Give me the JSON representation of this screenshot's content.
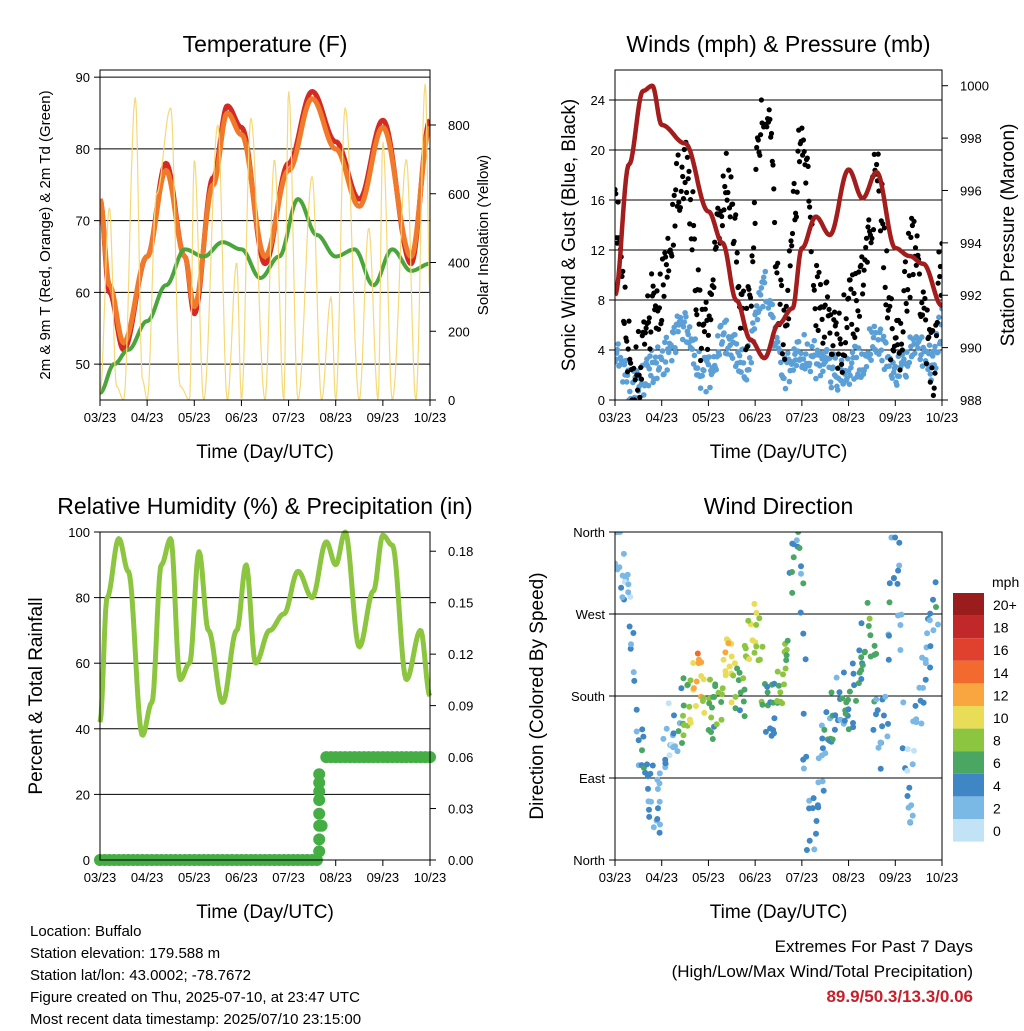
{
  "footer": {
    "location": "Location: Buffalo",
    "elevation": "Station elevation: 179.588 m",
    "latlon": "Station lat/lon: 43.0002; -78.7672",
    "created": "Figure created on Thu, 2025-07-10, at 23:47 UTC",
    "recent": "Most recent data timestamp: 2025/07/10 23:15:00"
  },
  "extremes": {
    "title": "Extremes For Past 7 Days",
    "subtitle": "(High/Low/Max Wind/Total Precipitation)",
    "values": "89.9/50.3/13.3/0.06",
    "color": "#c8202a"
  },
  "chart_data": [
    {
      "type": "line",
      "title": "Temperature (F)",
      "xlabel": "Time (Day/UTC)",
      "ylabel": "2m & 9m T (Red, Orange) & 2m Td (Green)",
      "y2label": "Solar Insolation (Yellow)",
      "x_ticks": [
        "03/23",
        "04/23",
        "05/23",
        "06/23",
        "07/23",
        "08/23",
        "09/23",
        "10/23"
      ],
      "ylim": [
        45,
        91
      ],
      "y_ticks": [
        50,
        60,
        70,
        80,
        90
      ],
      "y2lim": [
        0,
        960
      ],
      "y2_ticks": [
        0,
        200,
        400,
        600,
        800
      ],
      "grid": true,
      "series": [
        {
          "name": "2m T",
          "color": "#d42a24",
          "axis": "y",
          "x": [
            0,
            0.2,
            0.5,
            1,
            1.4,
            1.8,
            2,
            2.4,
            2.7,
            3,
            3.5,
            4,
            4.5,
            5,
            5.5,
            6,
            6.6,
            7
          ],
          "values": [
            73,
            60,
            52,
            65,
            78,
            65,
            57,
            76,
            86,
            83,
            64,
            78,
            88,
            81,
            73,
            84,
            64,
            84
          ]
        },
        {
          "name": "9m T",
          "color": "#f07a2a",
          "axis": "y",
          "x": [
            0,
            0.2,
            0.5,
            1,
            1.4,
            1.8,
            2,
            2.4,
            2.7,
            3,
            3.5,
            4,
            4.5,
            5,
            5.5,
            6,
            6.6,
            7
          ],
          "values": [
            73,
            61,
            53,
            65,
            77,
            65,
            58,
            75,
            85,
            82,
            65,
            77,
            87,
            80,
            72,
            83,
            65,
            83
          ]
        },
        {
          "name": "2m Td",
          "color": "#4aa63c",
          "axis": "y",
          "x": [
            0,
            0.3,
            0.6,
            1,
            1.4,
            1.8,
            2.2,
            2.6,
            3,
            3.4,
            3.8,
            4.2,
            4.6,
            5,
            5.4,
            5.8,
            6.2,
            6.6,
            7
          ],
          "values": [
            46,
            50,
            52,
            56,
            61,
            66,
            65,
            67,
            66,
            62,
            65,
            73,
            68,
            65,
            66,
            61,
            66,
            63,
            64
          ]
        },
        {
          "name": "Solar Insolation",
          "color": "#f5d978",
          "axis": "y2",
          "x": [
            0,
            0.2,
            0.35,
            0.5,
            0.75,
            0.9,
            1,
            1.2,
            1.5,
            1.7,
            1.9,
            2,
            2.2,
            2.5,
            2.7,
            2.9,
            3,
            3.2,
            3.5,
            3.7,
            3.9,
            4,
            4.2,
            4.5,
            4.7,
            4.9,
            5,
            5.2,
            5.5,
            5.7,
            5.9,
            6,
            6.2,
            6.5,
            6.7,
            6.9,
            7
          ],
          "values": [
            20,
            560,
            40,
            0,
            880,
            60,
            0,
            600,
            850,
            40,
            0,
            700,
            0,
            800,
            0,
            400,
            0,
            820,
            0,
            700,
            0,
            900,
            0,
            650,
            0,
            300,
            0,
            850,
            0,
            500,
            0,
            750,
            0,
            700,
            0,
            920,
            300
          ]
        }
      ]
    },
    {
      "type": "scatter",
      "title": "Winds (mph) & Pressure (mb)",
      "xlabel": "Time (Day/UTC)",
      "ylabel": "Sonic Wind & Gust (Blue, Black)",
      "y2label": "Station Pressure (Maroon)",
      "x_ticks": [
        "03/23",
        "04/23",
        "05/23",
        "06/23",
        "07/23",
        "08/23",
        "09/23",
        "10/23"
      ],
      "ylim": [
        0,
        26.4
      ],
      "y_ticks": [
        0,
        4,
        8,
        12,
        16,
        20,
        24
      ],
      "y2lim": [
        988,
        1000.6
      ],
      "y2_ticks": [
        988,
        990,
        992,
        994,
        996,
        998,
        1000
      ],
      "grid": true,
      "series": [
        {
          "name": "Sonic Wind",
          "color": "#5a9fd6",
          "axis": "y",
          "x": [
            0,
            0.4,
            0.9,
            1.5,
            1.9,
            2.4,
            2.8,
            3.2,
            3.6,
            4,
            4.4,
            4.8,
            5.2,
            5.6,
            6,
            6.4,
            6.8,
            7
          ],
          "values": [
            4,
            1,
            3,
            6,
            2,
            5,
            3,
            9,
            2,
            4,
            3,
            2,
            3,
            5,
            2,
            4,
            3,
            6
          ]
        },
        {
          "name": "Gust",
          "color": "#000000",
          "axis": "y",
          "x": [
            0,
            0.4,
            0.9,
            1.5,
            1.9,
            2.4,
            2.8,
            3.2,
            3.6,
            4,
            4.4,
            4.8,
            5.2,
            5.6,
            6,
            6.4,
            6.8,
            7
          ],
          "values": [
            14,
            2,
            8,
            19,
            5,
            17,
            6,
            24,
            6,
            20,
            7,
            5,
            8,
            17,
            4,
            12,
            3,
            11
          ]
        },
        {
          "name": "Station Pressure",
          "color": "#a31d1d",
          "axis": "y2",
          "x": [
            0,
            0.3,
            0.6,
            0.8,
            1,
            1.5,
            2,
            2.3,
            2.6,
            2.9,
            3.2,
            3.5,
            3.8,
            4,
            4.3,
            4.6,
            5,
            5.3,
            5.6,
            6,
            6.3,
            6.6,
            7
          ],
          "values": [
            992,
            997,
            999.8,
            1000,
            998.5,
            997.8,
            995.2,
            994,
            991.8,
            990.3,
            989.6,
            990.9,
            991.5,
            993.8,
            995,
            994.3,
            996.8,
            995.7,
            996.7,
            993.8,
            993.5,
            993.2,
            991.6
          ]
        }
      ]
    },
    {
      "type": "line",
      "title": "Relative Humidity (%) & Precipitation (in)",
      "xlabel": "Time (Day/UTC)",
      "ylabel": "Percent & Total Rainfall",
      "x_ticks": [
        "03/23",
        "04/23",
        "05/23",
        "06/23",
        "07/23",
        "08/23",
        "09/23",
        "10/23"
      ],
      "ylim": [
        0,
        100
      ],
      "y_ticks": [
        0,
        20,
        40,
        60,
        80,
        100
      ],
      "y2lim": [
        0,
        0.1912
      ],
      "y2_ticks": [
        "0.00",
        "0.03",
        "0.06",
        "0.09",
        "0.12",
        "0.15",
        "0.18"
      ],
      "grid": true,
      "series": [
        {
          "name": "RH",
          "color": "#8cc540",
          "axis": "y",
          "x": [
            0,
            0.15,
            0.4,
            0.6,
            0.9,
            1.1,
            1.3,
            1.5,
            1.7,
            1.9,
            2.1,
            2.3,
            2.6,
            2.9,
            3.1,
            3.3,
            3.6,
            3.9,
            4.2,
            4.5,
            4.8,
            5,
            5.2,
            5.5,
            5.8,
            6,
            6.2,
            6.5,
            6.8,
            7
          ],
          "values": [
            42,
            80,
            98,
            88,
            38,
            48,
            90,
            98,
            55,
            60,
            94,
            70,
            48,
            70,
            90,
            60,
            70,
            75,
            88,
            80,
            97,
            90,
            100,
            65,
            82,
            99,
            96,
            55,
            70,
            50
          ]
        },
        {
          "name": "Total Rainfall",
          "color": "#44ad44",
          "axis": "y2",
          "x": [
            0,
            4.6,
            4.65,
            4.7,
            7
          ],
          "values": [
            0,
            0,
            0.02,
            0.06,
            0.06
          ]
        }
      ]
    },
    {
      "type": "scatter",
      "title": "Wind Direction",
      "xlabel": "Time (Day/UTC)",
      "ylabel": "Direction (Colored By Speed)",
      "x_ticks": [
        "03/23",
        "04/23",
        "05/23",
        "06/23",
        "07/23",
        "08/23",
        "09/23",
        "10/23"
      ],
      "y_ticks": [
        "North",
        "East",
        "South",
        "West",
        "North"
      ],
      "ylim": [
        0,
        360
      ],
      "grid": true,
      "colorbar": {
        "title": "mph",
        "labels": [
          "20+",
          "18",
          "16",
          "14",
          "12",
          "10",
          "8",
          "6",
          "4",
          "2",
          "0"
        ],
        "colors": [
          "#9b1c1c",
          "#c0282a",
          "#e0402e",
          "#f26a2e",
          "#f9a640",
          "#e9dc56",
          "#8cc540",
          "#4aa663",
          "#3f86c4",
          "#7ab8e6",
          "#c2e3f5"
        ]
      },
      "series": [
        {
          "name": "Direction",
          "x": [
            0,
            0.3,
            0.6,
            0.9,
            1.2,
            1.5,
            1.8,
            2.1,
            2.4,
            2.7,
            3,
            3.3,
            3.6,
            3.9,
            4.2,
            4.5,
            4.8,
            5.1,
            5.4,
            5.7,
            6,
            6.3,
            6.6,
            6.9
          ],
          "values": [
            350,
            300,
            90,
            60,
            150,
            170,
            200,
            150,
            230,
            180,
            250,
            160,
            200,
            360,
            30,
            130,
            170,
            180,
            250,
            120,
            340,
            60,
            200,
            280
          ],
          "speeds": [
            3,
            2,
            4,
            3,
            2,
            7,
            12,
            5,
            11,
            6,
            9,
            4,
            8,
            4,
            3,
            4,
            4,
            5,
            6,
            3,
            4,
            2,
            3,
            4
          ]
        }
      ]
    }
  ]
}
